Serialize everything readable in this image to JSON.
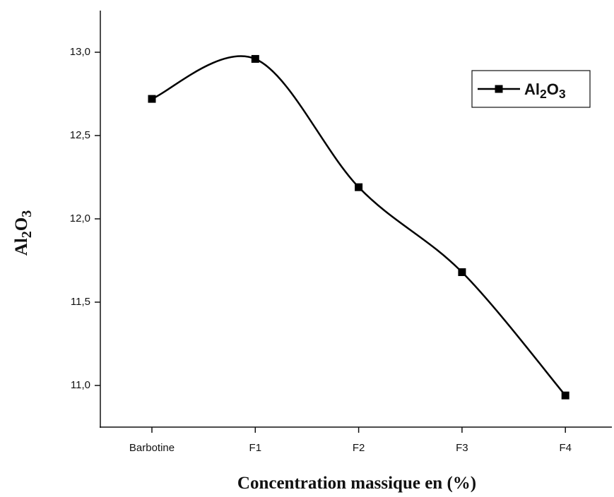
{
  "chart_data": {
    "type": "line",
    "x_label": "Concentration massique en (%)",
    "y_label": "Al2O3",
    "categories": [
      "Barbotine",
      "F1",
      "F2",
      "F3",
      "F4"
    ],
    "series": [
      {
        "name": "Al2O3",
        "color": "#000000",
        "values": [
          12.72,
          12.96,
          12.19,
          11.68,
          10.94
        ]
      }
    ],
    "ylim": [
      10.75,
      13.25
    ],
    "yticks": [
      {
        "value": 11,
        "label": "11,0"
      },
      {
        "value": 11.5,
        "label": "11,5"
      },
      {
        "value": 12,
        "label": "12,0"
      },
      {
        "value": 12.5,
        "label": "12,5"
      },
      {
        "value": 13,
        "label": "13,0"
      }
    ],
    "smooth": true,
    "legend": "upper right"
  }
}
